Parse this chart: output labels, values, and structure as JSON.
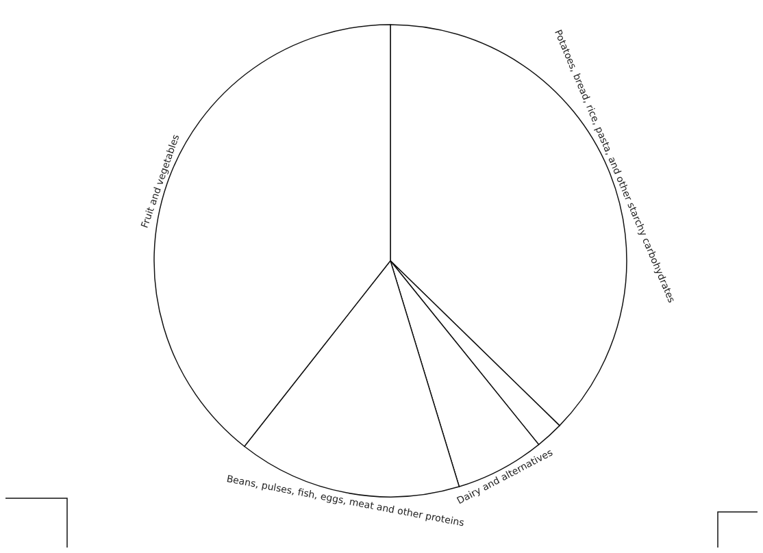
{
  "chart_data": {
    "type": "pie",
    "categories": [
      "Potatoes, bread, rice, pasta, and other starchy carbohydrates",
      null,
      "Dairy and alternatives",
      "Beans, pulses, fish, eggs, meat and other proteins",
      "Fruit and vegetables"
    ],
    "values": [
      37.3,
      1.9,
      6.1,
      15.3,
      39.4
    ],
    "colors": [
      "#ffffff",
      "#ffffff",
      "#ffffff",
      "#ffffff",
      "#ffffff"
    ]
  }
}
